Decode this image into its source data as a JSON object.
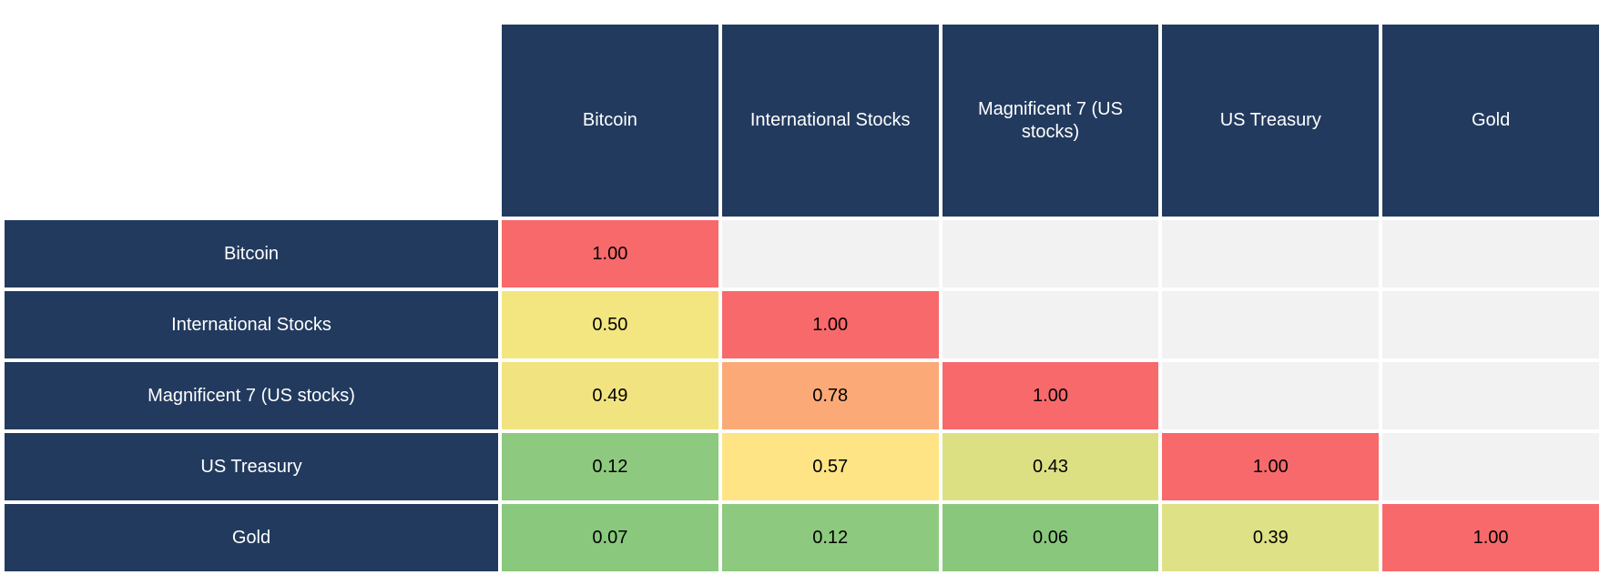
{
  "colors": {
    "header_bg": "#223A5E",
    "header_text": "#FFFFFF",
    "cell_text": "#000000",
    "empty_cell_bg": "#F2F2F2",
    "gap": "#FFFFFF",
    "scale_max_red": "#F8696B",
    "scale_mid_yellow": "#FEE485",
    "scale_min_green": "#89C77C"
  },
  "chart_data": {
    "type": "heatmap",
    "description": "Lower-triangle correlation matrix of asset returns",
    "columns": [
      "Bitcoin",
      "International Stocks",
      "Magnificent 7 (US stocks)",
      "US Treasury",
      "Gold"
    ],
    "rows": [
      "Bitcoin",
      "International Stocks",
      "Magnificent 7 (US stocks)",
      "US Treasury",
      "Gold"
    ],
    "value_format": "0.00",
    "matrix": [
      [
        1.0,
        null,
        null,
        null,
        null
      ],
      [
        0.5,
        1.0,
        null,
        null,
        null
      ],
      [
        0.49,
        0.78,
        1.0,
        null,
        null
      ],
      [
        0.12,
        0.57,
        0.43,
        1.0,
        null
      ],
      [
        0.07,
        0.12,
        0.06,
        0.39,
        1.0
      ]
    ],
    "cell_colors": [
      [
        "#F8696B",
        null,
        null,
        null,
        null
      ],
      [
        "#F3E681",
        "#F8696B",
        null,
        null,
        null
      ],
      [
        "#F1E480",
        "#FBAA77",
        "#F8696B",
        null,
        null
      ],
      [
        "#8DCA7F",
        "#FEE485",
        "#DCE083",
        "#F8696B",
        null
      ],
      [
        "#8AC87D",
        "#8DCA7F",
        "#89C77C",
        "#DEE185",
        "#F8696B"
      ]
    ],
    "layout": {
      "grid": "off",
      "legend": "none",
      "empty_upper_triangle": true
    }
  }
}
